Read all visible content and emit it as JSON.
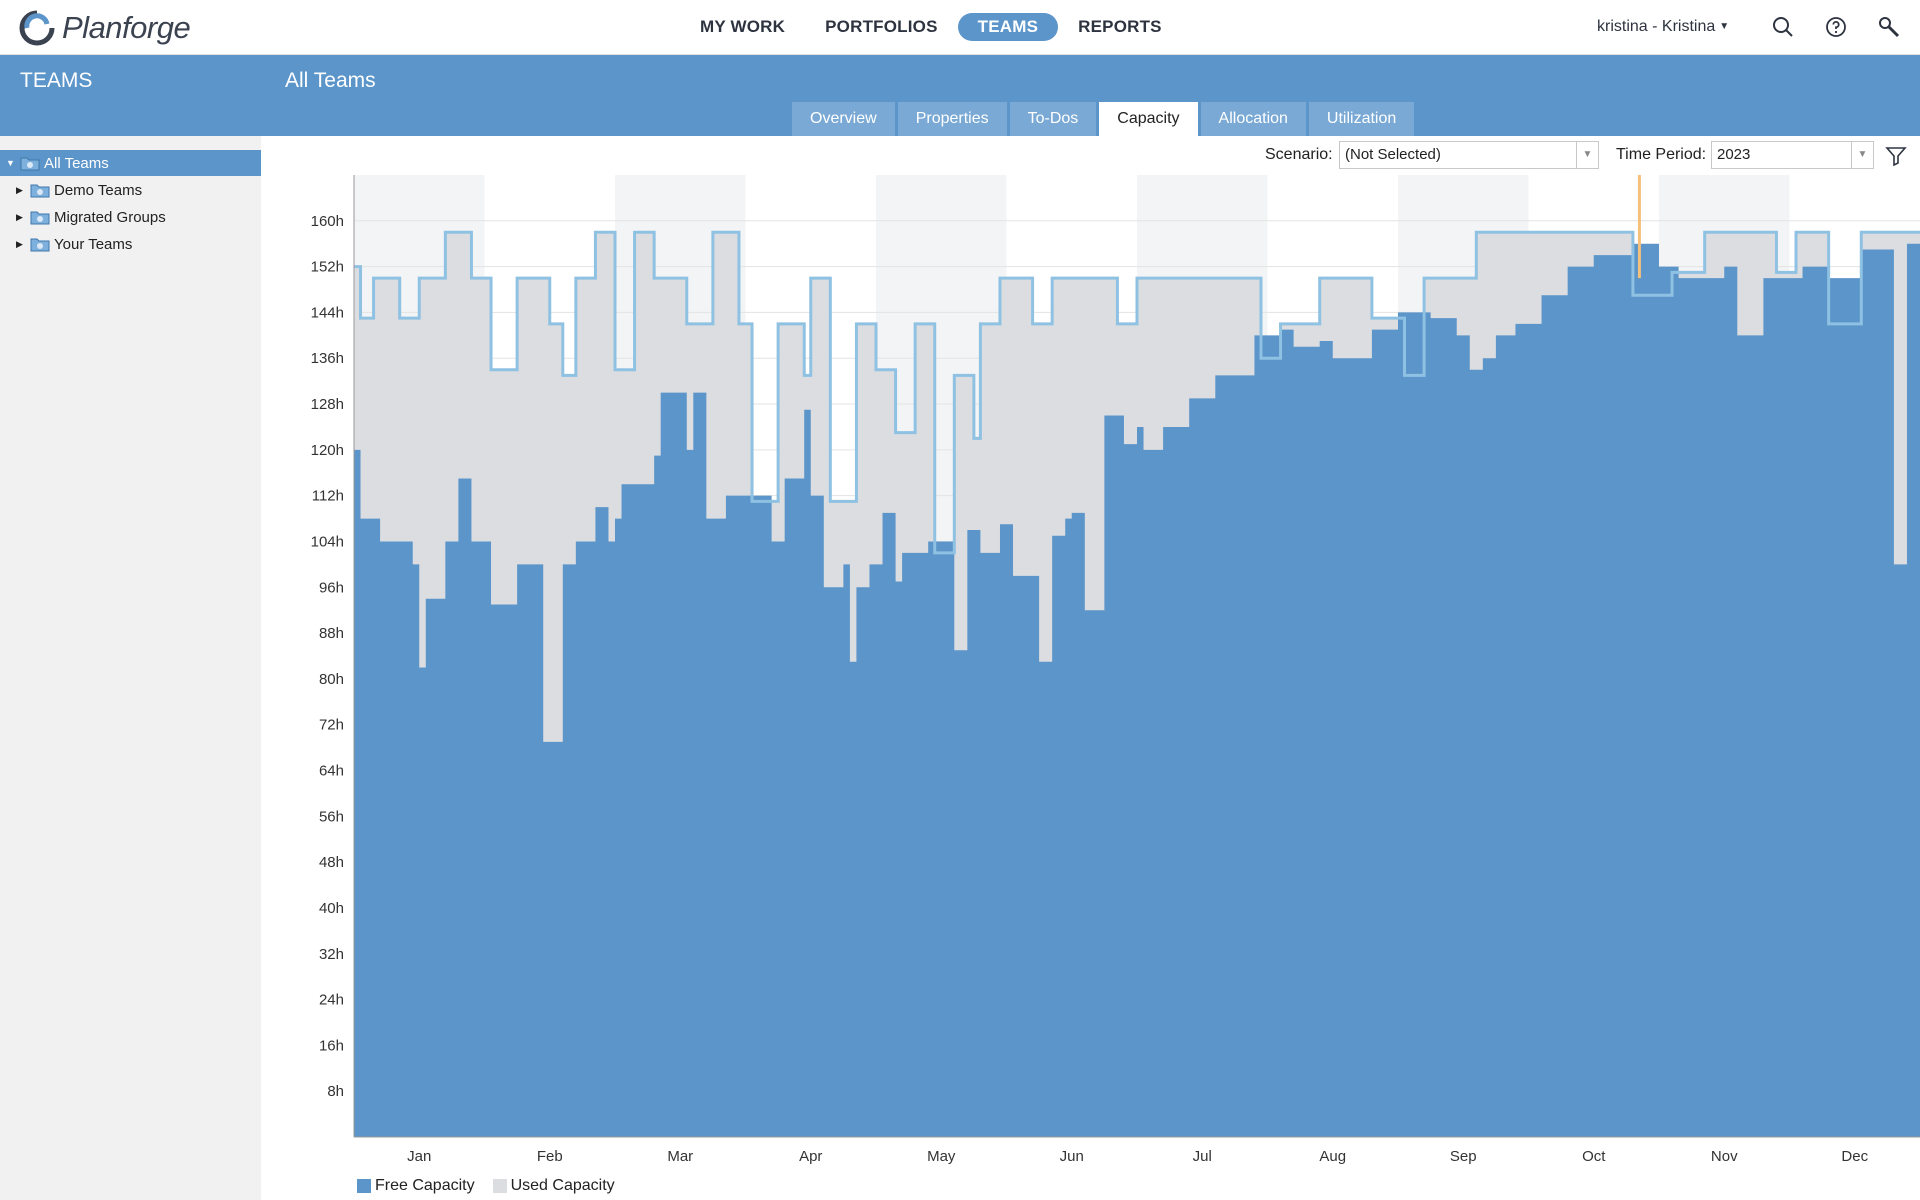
{
  "app": {
    "name": "Planforge"
  },
  "nav": {
    "items": [
      {
        "label": "MY WORK"
      },
      {
        "label": "PORTFOLIOS"
      },
      {
        "label": "TEAMS"
      },
      {
        "label": "REPORTS"
      }
    ],
    "active": "TEAMS"
  },
  "user": {
    "label": "kristina - Kristina"
  },
  "icons": {
    "search": "search-icon",
    "help": "help-icon",
    "admin": "wrench-icon",
    "filter": "filter-icon"
  },
  "sidebar": {
    "title": "TEAMS",
    "tree": [
      {
        "label": "All Teams",
        "selected": true
      },
      {
        "label": "Demo Teams"
      },
      {
        "label": "Migrated Groups"
      },
      {
        "label": "Your Teams"
      }
    ]
  },
  "main": {
    "title": "All Teams",
    "tabs": [
      {
        "label": "Overview"
      },
      {
        "label": "Properties"
      },
      {
        "label": "To-Dos"
      },
      {
        "label": "Capacity"
      },
      {
        "label": "Allocation"
      },
      {
        "label": "Utilization"
      }
    ],
    "active_tab": "Capacity"
  },
  "filters": {
    "scenario_label": "Scenario:",
    "scenario_value": "(Not Selected)",
    "period_label": "Time Period:",
    "period_value": "2023"
  },
  "colors": {
    "accent": "#5b95c9",
    "free_capacity": "#5b95c9",
    "used_capacity": "#dcdde1",
    "total_line": "#8fc1e3",
    "today_marker": "#f5c07a"
  },
  "chart_data": {
    "type": "area",
    "ylabel": "",
    "ylim": [
      0,
      160
    ],
    "yticks": [
      "8h",
      "16h",
      "24h",
      "32h",
      "40h",
      "48h",
      "56h",
      "64h",
      "72h",
      "80h",
      "88h",
      "96h",
      "104h",
      "112h",
      "120h",
      "128h",
      "136h",
      "144h",
      "152h",
      "160h"
    ],
    "months": [
      "Jan",
      "Feb",
      "Mar",
      "Apr",
      "May",
      "Jun",
      "Jul",
      "Aug",
      "Sep",
      "Oct",
      "Nov",
      "Dec"
    ],
    "grid": true,
    "legend": "bottom-left",
    "today": 9.85,
    "series": [
      {
        "name": "Free Capacity",
        "points": [
          [
            0,
            120
          ],
          [
            0.05,
            108
          ],
          [
            0.2,
            104
          ],
          [
            0.45,
            100
          ],
          [
            0.5,
            82
          ],
          [
            0.55,
            94
          ],
          [
            0.7,
            104
          ],
          [
            0.8,
            115
          ],
          [
            0.9,
            104
          ],
          [
            1.05,
            93
          ],
          [
            1.25,
            100
          ],
          [
            1.45,
            69
          ],
          [
            1.6,
            100
          ],
          [
            1.7,
            104
          ],
          [
            1.85,
            110
          ],
          [
            1.95,
            104
          ],
          [
            2.0,
            108
          ],
          [
            2.05,
            114
          ],
          [
            2.3,
            119
          ],
          [
            2.35,
            130
          ],
          [
            2.55,
            120
          ],
          [
            2.6,
            130
          ],
          [
            2.7,
            108
          ],
          [
            2.85,
            112
          ],
          [
            3.05,
            112
          ],
          [
            3.2,
            104
          ],
          [
            3.3,
            115
          ],
          [
            3.45,
            127
          ],
          [
            3.5,
            112
          ],
          [
            3.6,
            96
          ],
          [
            3.75,
            100
          ],
          [
            3.8,
            83
          ],
          [
            3.85,
            96
          ],
          [
            3.95,
            100
          ],
          [
            4.05,
            109
          ],
          [
            4.15,
            97
          ],
          [
            4.2,
            102
          ],
          [
            4.4,
            104
          ],
          [
            4.6,
            85
          ],
          [
            4.7,
            106
          ],
          [
            4.8,
            102
          ],
          [
            4.95,
            107
          ],
          [
            5.05,
            98
          ],
          [
            5.25,
            83
          ],
          [
            5.35,
            105
          ],
          [
            5.45,
            108
          ],
          [
            5.5,
            109
          ],
          [
            5.6,
            92
          ],
          [
            5.75,
            126
          ],
          [
            5.9,
            121
          ],
          [
            6.0,
            124
          ],
          [
            6.05,
            120
          ],
          [
            6.2,
            124
          ],
          [
            6.4,
            129
          ],
          [
            6.6,
            133
          ],
          [
            6.9,
            140
          ],
          [
            7.1,
            141
          ],
          [
            7.2,
            138
          ],
          [
            7.4,
            139
          ],
          [
            7.5,
            136
          ],
          [
            7.8,
            141
          ],
          [
            8.0,
            144
          ],
          [
            8.25,
            143
          ],
          [
            8.45,
            140
          ],
          [
            8.55,
            134
          ],
          [
            8.65,
            136
          ],
          [
            8.75,
            140
          ],
          [
            8.9,
            142
          ],
          [
            9.1,
            147
          ],
          [
            9.3,
            152
          ],
          [
            9.5,
            154
          ],
          [
            9.8,
            156
          ],
          [
            10.0,
            152
          ],
          [
            10.15,
            150
          ],
          [
            10.3,
            150
          ],
          [
            10.5,
            152
          ],
          [
            10.6,
            140
          ],
          [
            10.8,
            150
          ],
          [
            11.1,
            152
          ],
          [
            11.3,
            150
          ],
          [
            11.55,
            155
          ],
          [
            11.8,
            100
          ],
          [
            11.9,
            156
          ],
          [
            12.0,
            156
          ]
        ]
      },
      {
        "name": "Used Capacity",
        "points": [
          [
            0,
            152
          ],
          [
            0.05,
            143
          ],
          [
            0.15,
            150
          ],
          [
            0.35,
            143
          ],
          [
            0.5,
            150
          ],
          [
            0.7,
            158
          ],
          [
            0.9,
            150
          ],
          [
            1.05,
            134
          ],
          [
            1.25,
            150
          ],
          [
            1.5,
            142
          ],
          [
            1.6,
            133
          ],
          [
            1.7,
            150
          ],
          [
            1.85,
            158
          ],
          [
            2.0,
            134
          ],
          [
            2.15,
            158
          ],
          [
            2.3,
            150
          ],
          [
            2.55,
            142
          ],
          [
            2.75,
            158
          ],
          [
            2.95,
            142
          ],
          [
            3.05,
            111
          ],
          [
            3.25,
            142
          ],
          [
            3.45,
            133
          ],
          [
            3.5,
            150
          ],
          [
            3.65,
            111
          ],
          [
            3.85,
            142
          ],
          [
            4.0,
            134
          ],
          [
            4.15,
            123
          ],
          [
            4.3,
            142
          ],
          [
            4.45,
            102
          ],
          [
            4.6,
            133
          ],
          [
            4.75,
            122
          ],
          [
            4.8,
            142
          ],
          [
            4.95,
            150
          ],
          [
            5.05,
            150
          ],
          [
            5.2,
            142
          ],
          [
            5.35,
            150
          ],
          [
            5.7,
            150
          ],
          [
            5.85,
            142
          ],
          [
            6.0,
            150
          ],
          [
            6.2,
            150
          ],
          [
            6.4,
            150
          ],
          [
            6.6,
            150
          ],
          [
            6.8,
            150
          ],
          [
            6.95,
            136
          ],
          [
            7.1,
            142
          ],
          [
            7.4,
            150
          ],
          [
            7.65,
            150
          ],
          [
            7.8,
            143
          ],
          [
            8.05,
            133
          ],
          [
            8.2,
            150
          ],
          [
            8.4,
            150
          ],
          [
            8.6,
            158
          ],
          [
            8.8,
            158
          ],
          [
            9.05,
            158
          ],
          [
            9.3,
            158
          ],
          [
            9.55,
            158
          ],
          [
            9.8,
            147
          ],
          [
            10.1,
            151
          ],
          [
            10.35,
            158
          ],
          [
            10.6,
            158
          ],
          [
            10.9,
            151
          ],
          [
            11.05,
            158
          ],
          [
            11.3,
            142
          ],
          [
            11.55,
            158
          ],
          [
            11.8,
            158
          ],
          [
            12.0,
            158
          ]
        ]
      }
    ]
  }
}
